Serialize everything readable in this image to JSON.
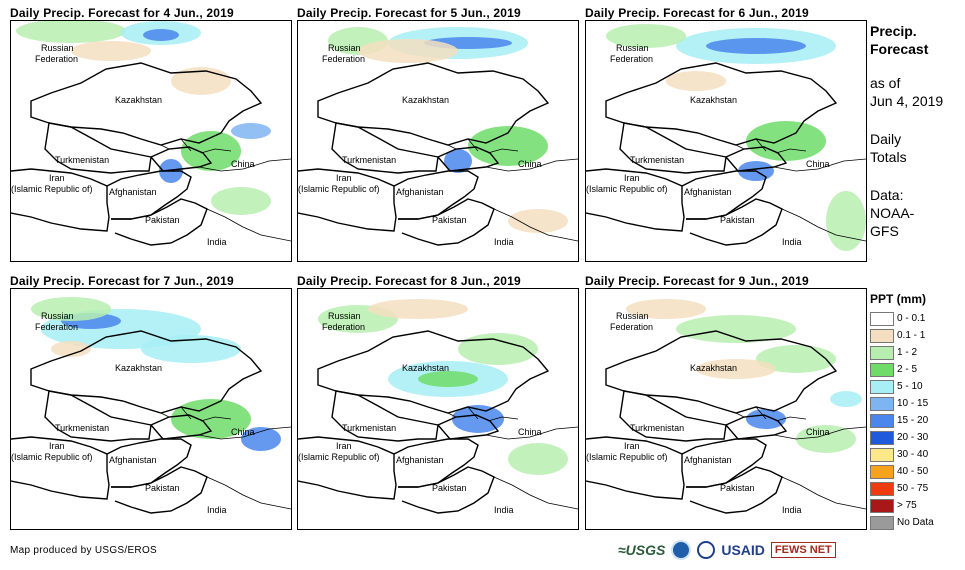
{
  "panels": [
    {
      "title": "Daily Precip. Forecast for 4 Jun., 2019"
    },
    {
      "title": "Daily Precip. Forecast for 5 Jun., 2019"
    },
    {
      "title": "Daily Precip. Forecast for 6 Jun., 2019"
    },
    {
      "title": "Daily Precip. Forecast for 7 Jun., 2019"
    },
    {
      "title": "Daily Precip. Forecast for 8 Jun., 2019"
    },
    {
      "title": "Daily Precip. Forecast for 9 Jun., 2019"
    }
  ],
  "country_labels": {
    "russia_1": "Russian",
    "russia_2": "Federation",
    "kazakhstan": "Kazakhstan",
    "turkmenistan": "Turkmenistan",
    "iran_1": "Iran",
    "iran_2": "(Islamic Republic of)",
    "afghanistan": "Afghanistan",
    "pakistan": "Pakistan",
    "india": "India",
    "china": "China"
  },
  "sidebar": {
    "heading_1": "Precip.",
    "heading_2": "Forecast",
    "as_of_1": "as of",
    "as_of_2": "Jun 4, 2019",
    "totals_1": "Daily",
    "totals_2": "Totals",
    "data_1": "Data:",
    "data_2": "NOAA-",
    "data_3": "GFS"
  },
  "legend": {
    "title": "PPT (mm)",
    "items": [
      {
        "label": "0 - 0.1",
        "color": "#ffffff"
      },
      {
        "label": "0.1 - 1",
        "color": "#f3dfbf"
      },
      {
        "label": "1 - 2",
        "color": "#b7eeb0"
      },
      {
        "label": "2 - 5",
        "color": "#6fdc6a"
      },
      {
        "label": "5 - 10",
        "color": "#a7eef5"
      },
      {
        "label": "10 - 15",
        "color": "#7fb4f2"
      },
      {
        "label": "15 - 20",
        "color": "#4a86ec"
      },
      {
        "label": "20 - 30",
        "color": "#1f5adc"
      },
      {
        "label": "30 - 40",
        "color": "#fde98a"
      },
      {
        "label": "40 - 50",
        "color": "#f7a21c"
      },
      {
        "label": "50 - 75",
        "color": "#ef3b10"
      },
      {
        "label": "> 75",
        "color": "#a81818"
      },
      {
        "label": "No Data",
        "color": "#9a9a9a"
      }
    ]
  },
  "credit": "Map produced by USGS/EROS",
  "logos": {
    "usgs": "≈USGS",
    "usaid": "USAID",
    "fews": "FEWS NET"
  }
}
